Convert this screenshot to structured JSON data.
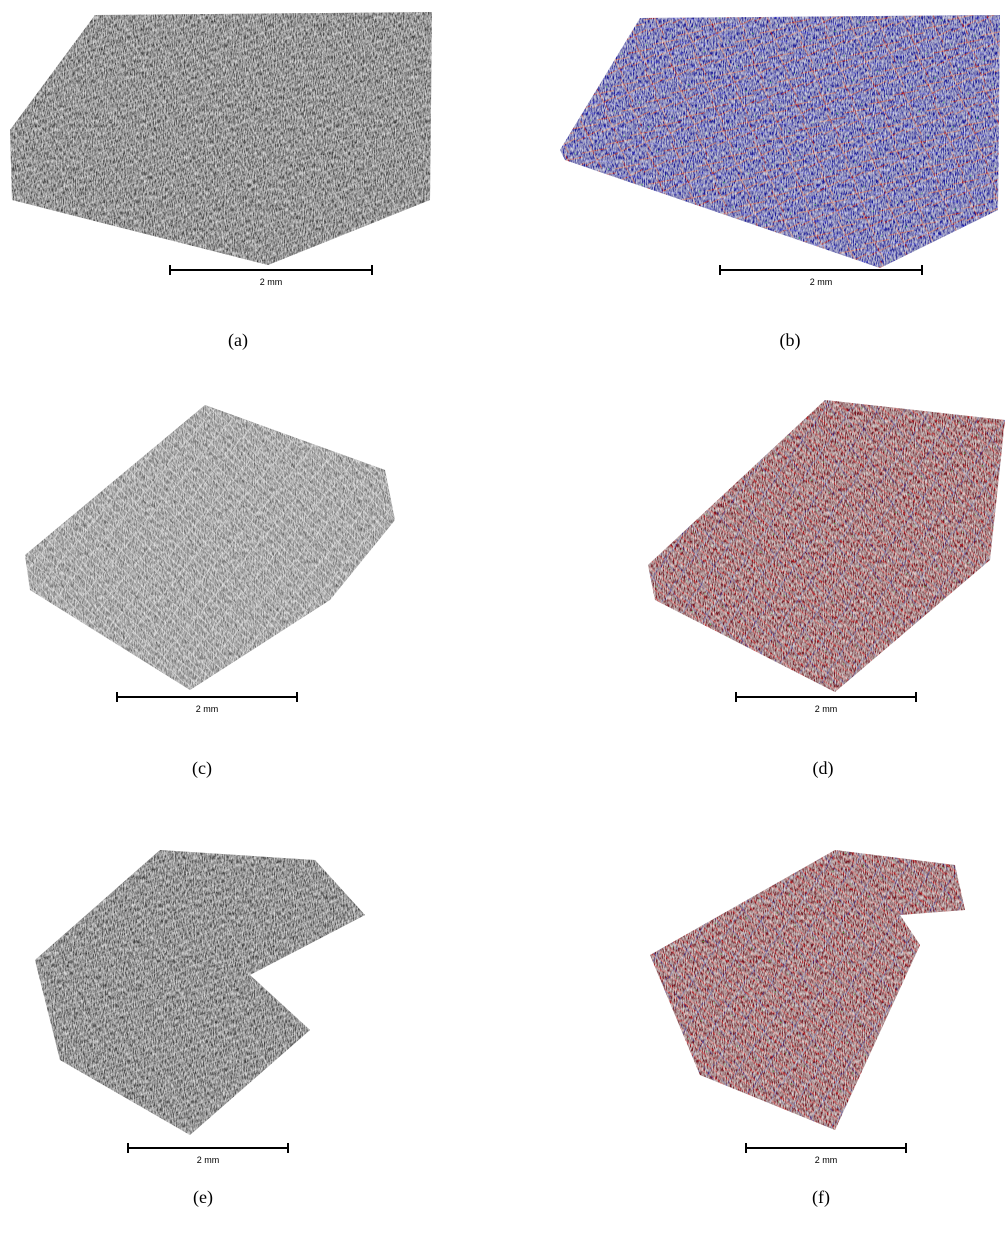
{
  "panels": [
    {
      "caption": "(a)",
      "scale_label": "2 mm"
    },
    {
      "caption": "(b)",
      "scale_label": "2 mm"
    },
    {
      "caption": "(c)",
      "scale_label": "2 mm"
    },
    {
      "caption": "(d)",
      "scale_label": "2 mm"
    },
    {
      "caption": "(e)",
      "scale_label": "2 mm"
    },
    {
      "caption": "(f)",
      "scale_label": "2 mm"
    }
  ]
}
